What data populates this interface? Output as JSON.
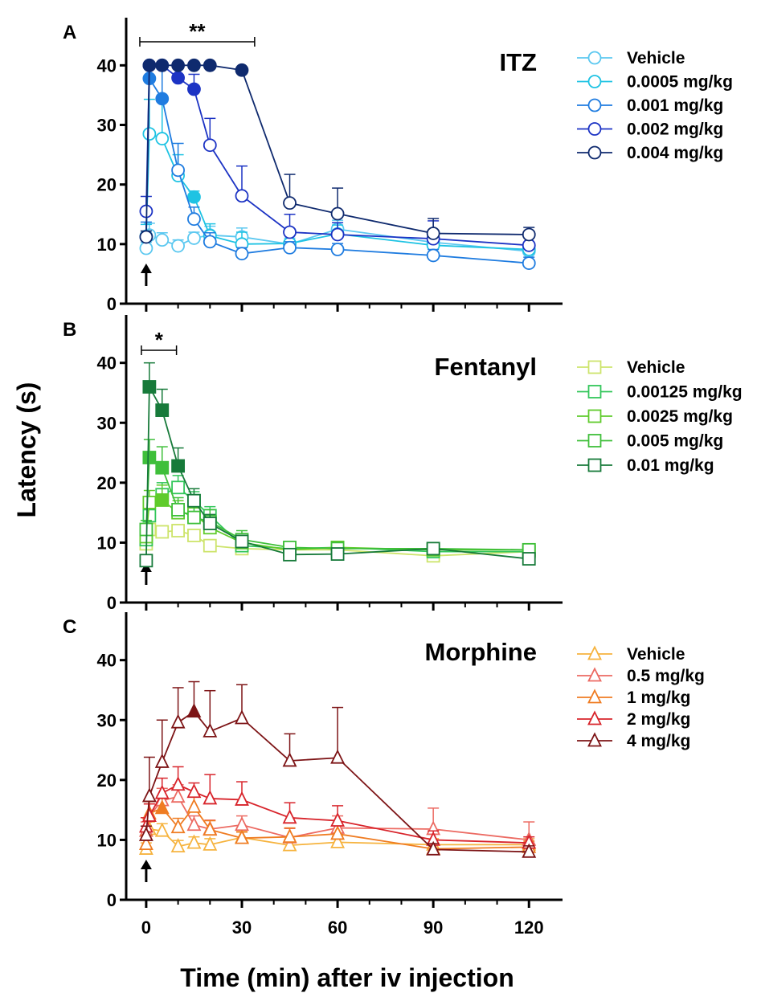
{
  "figure": {
    "ylabel": "Latency (s)",
    "xlabel": "Time (min) after iv  injection",
    "x_ticks": [
      0,
      30,
      60,
      90,
      120
    ],
    "x_tick_labels": [
      "0",
      "30",
      "60",
      "90",
      "120"
    ],
    "y_ticks": [
      0,
      10,
      20,
      30,
      40
    ],
    "y_tick_labels": [
      "0",
      "10",
      "20",
      "30",
      "40"
    ]
  },
  "chart_data": [
    {
      "type": "line",
      "panel": "A",
      "title": "ITZ",
      "marker": "circle",
      "x": [
        0,
        1,
        5,
        10,
        15,
        20,
        30,
        45,
        60,
        90,
        120
      ],
      "ylim": [
        0,
        48
      ],
      "xlim": [
        -3,
        128
      ],
      "injection_arrow_at": 0,
      "significance": {
        "label": "**",
        "from": -2,
        "to": 34
      },
      "series": [
        {
          "name": "Vehicle",
          "color": "#5bc8f0",
          "y": [
            9.3,
            11.5,
            10.7,
            9.7,
            11.0,
            11.5,
            11.2,
            10.0,
            12.5,
            10.3,
            8.8
          ],
          "err": [
            1.0,
            2.0,
            1.2,
            1.0,
            1.0,
            1.5,
            1.5,
            1.0,
            1.5,
            1.0,
            1.0
          ],
          "filled": [
            false,
            false,
            false,
            false,
            false,
            false,
            false,
            false,
            false,
            false,
            false
          ]
        },
        {
          "name": "0.0005 mg/kg",
          "color": "#1ec3e3",
          "y": [
            11.3,
            28.5,
            27.7,
            21.5,
            17.9,
            11.4,
            10.0,
            10.1,
            11.7,
            9.8,
            9.1
          ],
          "err": [
            2.0,
            5.8,
            6.5,
            3.5,
            1.0,
            2.0,
            2.0,
            1.5,
            1.5,
            1.0,
            1.0
          ],
          "filled": [
            false,
            false,
            false,
            false,
            true,
            false,
            false,
            false,
            false,
            false,
            false
          ]
        },
        {
          "name": "0.001 mg/kg",
          "color": "#1f7ce0",
          "y": [
            11.2,
            37.8,
            34.4,
            22.4,
            14.2,
            10.4,
            8.4,
            9.4,
            9.1,
            8.1,
            6.8
          ],
          "err": [
            2.5,
            2.0,
            5.0,
            4.5,
            2.0,
            1.5,
            1.0,
            1.0,
            1.0,
            1.0,
            1.0
          ],
          "filled": [
            false,
            true,
            true,
            false,
            false,
            false,
            false,
            false,
            false,
            false,
            false
          ]
        },
        {
          "name": "0.002 mg/kg",
          "color": "#1c33c4",
          "y": [
            15.5,
            40.0,
            40.0,
            37.9,
            36.0,
            26.6,
            18.1,
            12.0,
            11.6,
            10.9,
            9.8
          ],
          "err": [
            2.5,
            0,
            0,
            2.0,
            2.5,
            4.5,
            5.0,
            3.0,
            2.0,
            3.0,
            1.5
          ],
          "filled": [
            false,
            true,
            true,
            true,
            true,
            false,
            false,
            false,
            false,
            false,
            false
          ]
        },
        {
          "name": "0.004 mg/kg",
          "color": "#0f2a6e",
          "y": [
            11.2,
            40.0,
            40.0,
            40.0,
            40.0,
            40.0,
            39.2,
            16.9,
            15.1,
            11.8,
            11.6
          ],
          "err": [
            1.0,
            0,
            0,
            0,
            0,
            0,
            0,
            4.8,
            4.3,
            2.5,
            1.2
          ],
          "filled": [
            false,
            true,
            true,
            true,
            true,
            true,
            true,
            false,
            false,
            false,
            false
          ]
        }
      ]
    },
    {
      "type": "line",
      "panel": "B",
      "title": "Fentanyl",
      "marker": "square",
      "x": [
        0,
        1,
        5,
        10,
        15,
        20,
        30,
        45,
        60,
        90,
        120
      ],
      "ylim": [
        0,
        48
      ],
      "xlim": [
        -3,
        128
      ],
      "injection_arrow_at": 0,
      "significance": {
        "label": "*",
        "from": -1.5,
        "to": 9.5
      },
      "series": [
        {
          "name": "Vehicle",
          "color": "#cde46b",
          "y": [
            9.8,
            12.2,
            11.8,
            12.0,
            11.2,
            9.5,
            9.0,
            8.8,
            8.8,
            7.8,
            8.5
          ],
          "err": [
            1.0,
            1.0,
            1.0,
            1.0,
            1.0,
            1.0,
            0.8,
            0.8,
            0.8,
            0.8,
            0.8
          ],
          "filled": [
            false,
            false,
            false,
            false,
            false,
            false,
            false,
            false,
            false,
            false,
            false
          ]
        },
        {
          "name": "0.00125 mg/kg",
          "color": "#32c65a",
          "y": [
            10.5,
            14.5,
            18.0,
            19.2,
            17.0,
            14.5,
            9.5,
            9.0,
            9.2,
            8.5,
            8.5
          ],
          "err": [
            1.5,
            1.5,
            2.0,
            2.0,
            1.5,
            1.5,
            1.0,
            0.8,
            0.8,
            0.8,
            0.8
          ],
          "filled": [
            false,
            false,
            false,
            false,
            false,
            false,
            false,
            false,
            false,
            false,
            false
          ]
        },
        {
          "name": "0.0025 mg/kg",
          "color": "#5fcb2b",
          "y": [
            11.0,
            16.7,
            17.1,
            15.0,
            14.8,
            12.5,
            10.0,
            8.8,
            9.2,
            8.8,
            8.8
          ],
          "err": [
            1.5,
            2.0,
            2.5,
            2.0,
            1.5,
            1.5,
            1.0,
            0.8,
            0.8,
            0.8,
            0.8
          ],
          "filled": [
            false,
            false,
            true,
            false,
            false,
            false,
            false,
            false,
            false,
            false,
            false
          ]
        },
        {
          "name": "0.005 mg/kg",
          "color": "#3fbf3a",
          "y": [
            12.2,
            24.2,
            22.5,
            15.5,
            14.2,
            13.5,
            10.5,
            9.2,
            9.0,
            9.0,
            8.8
          ],
          "err": [
            1.5,
            3.0,
            3.5,
            2.0,
            2.0,
            2.0,
            1.5,
            1.0,
            1.0,
            0.8,
            0.8
          ],
          "filled": [
            false,
            true,
            true,
            false,
            false,
            false,
            false,
            false,
            false,
            false,
            false
          ]
        },
        {
          "name": "0.01 mg/kg",
          "color": "#177a3a",
          "y": [
            7.0,
            36.0,
            32.1,
            22.8,
            17.0,
            13.2,
            10.2,
            8.0,
            8.1,
            9.0,
            7.3
          ],
          "err": [
            1.0,
            4.0,
            3.5,
            3.0,
            2.0,
            1.5,
            1.0,
            1.0,
            1.0,
            1.0,
            1.0
          ],
          "filled": [
            false,
            true,
            true,
            true,
            false,
            false,
            false,
            false,
            false,
            false,
            false
          ]
        }
      ]
    },
    {
      "type": "line",
      "panel": "C",
      "title": "Morphine",
      "marker": "triangle",
      "x": [
        0,
        1,
        5,
        10,
        15,
        20,
        30,
        45,
        60,
        90,
        120
      ],
      "ylim": [
        0,
        48
      ],
      "xlim": [
        -3,
        128
      ],
      "injection_arrow_at": 0,
      "series": [
        {
          "name": "Vehicle",
          "color": "#f6b33e",
          "y": [
            8.5,
            11.8,
            11.5,
            8.9,
            9.5,
            9.2,
            10.4,
            9.1,
            9.6,
            9.2,
            9.2
          ],
          "err": [
            1.0,
            1.2,
            1.2,
            1.0,
            1.0,
            1.0,
            1.0,
            1.0,
            1.0,
            1.0,
            1.0
          ],
          "filled": [
            false,
            false,
            false,
            false,
            false,
            false,
            false,
            false,
            false,
            false,
            false
          ]
        },
        {
          "name": "0.5 mg/kg",
          "color": "#ec6a62",
          "y": [
            11.5,
            14.0,
            16.6,
            17.2,
            12.5,
            11.8,
            12.5,
            10.4,
            12.0,
            11.8,
            10.0
          ],
          "err": [
            1.5,
            2.0,
            2.0,
            2.0,
            1.5,
            1.5,
            1.5,
            1.5,
            2.0,
            3.5,
            3.0
          ],
          "filled": [
            false,
            false,
            false,
            false,
            false,
            false,
            false,
            false,
            false,
            false,
            false
          ]
        },
        {
          "name": "1 mg/kg",
          "color": "#ef7c22",
          "y": [
            9.3,
            14.4,
            15.3,
            12.1,
            15.5,
            11.7,
            10.3,
            10.5,
            11.0,
            8.5,
            8.8
          ],
          "err": [
            1.5,
            2.0,
            2.0,
            1.5,
            2.0,
            1.5,
            1.0,
            1.5,
            1.5,
            1.0,
            1.0
          ],
          "filled": [
            false,
            false,
            true,
            false,
            false,
            false,
            false,
            false,
            false,
            false,
            false
          ]
        },
        {
          "name": "2 mg/kg",
          "color": "#d8242b",
          "y": [
            12.2,
            14.0,
            17.8,
            19.2,
            18.0,
            16.9,
            16.7,
            13.7,
            13.2,
            10.0,
            9.5
          ],
          "err": [
            1.5,
            2.0,
            2.5,
            3.0,
            1.5,
            4.0,
            3.0,
            2.5,
            2.5,
            1.5,
            1.0
          ],
          "filled": [
            false,
            false,
            false,
            false,
            false,
            false,
            false,
            false,
            false,
            false,
            false
          ]
        },
        {
          "name": "4 mg/kg",
          "color": "#7d1416",
          "y": [
            10.8,
            17.3,
            23.0,
            29.6,
            31.4,
            28.1,
            30.3,
            23.2,
            23.7,
            8.4,
            8.0
          ],
          "err": [
            1.5,
            6.5,
            7.0,
            5.8,
            5.0,
            6.8,
            5.6,
            4.5,
            8.4,
            1.0,
            1.0
          ],
          "filled": [
            false,
            false,
            false,
            false,
            true,
            false,
            false,
            false,
            false,
            false,
            false
          ]
        }
      ]
    }
  ]
}
